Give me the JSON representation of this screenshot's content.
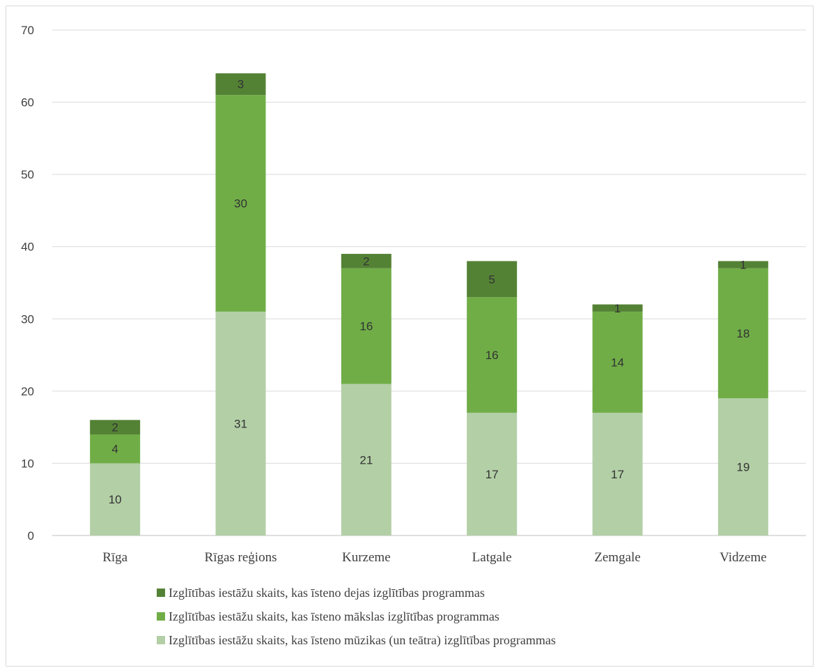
{
  "chart_data": {
    "type": "bar",
    "stacked": true,
    "categories": [
      "Rīga",
      "Rīgas reģions",
      "Kurzeme",
      "Latgale",
      "Zemgale",
      "Vidzeme"
    ],
    "series": [
      {
        "name": "Izglītības iestāžu skaits, kas īsteno mūzikas (un teātra)  izglītības programmas",
        "color": "#b3cfa6",
        "values": [
          10,
          31,
          21,
          17,
          17,
          19
        ]
      },
      {
        "name": "Izglītības iestāžu skaits, kas īsteno mākslas izglītības programmas",
        "color": "#70ad47",
        "values": [
          4,
          30,
          16,
          16,
          14,
          18
        ]
      },
      {
        "name": "Izglītības iestāžu skaits, kas īsteno dejas izglītības programmas",
        "color": "#548235",
        "values": [
          2,
          3,
          2,
          5,
          1,
          1
        ]
      }
    ],
    "ylim": [
      0,
      70
    ],
    "yticks": [
      0,
      10,
      20,
      30,
      40,
      50,
      60,
      70
    ],
    "grid": true,
    "legend_position": "bottom",
    "legend_order": [
      2,
      1,
      0
    ]
  }
}
